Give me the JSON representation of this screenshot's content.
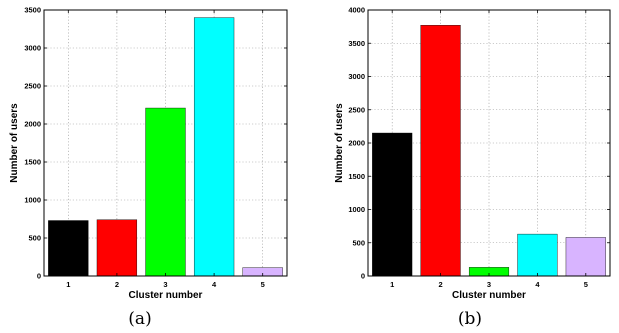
{
  "chart_data": [
    {
      "type": "bar",
      "categories": [
        "1",
        "2",
        "3",
        "4",
        "5"
      ],
      "values": [
        730,
        740,
        2210,
        3400,
        110
      ],
      "colors": [
        "#000000",
        "#ff0000",
        "#00ff00",
        "#00ffff",
        "#d8b4ff"
      ],
      "xlabel": "Cluster number",
      "ylabel": "Number of users",
      "ylim": [
        0,
        3500
      ],
      "yticks": [
        0,
        500,
        1000,
        1500,
        2000,
        2500,
        3000,
        3500
      ],
      "grid": true,
      "caption": "(a)"
    },
    {
      "type": "bar",
      "categories": [
        "1",
        "2",
        "3",
        "4",
        "5"
      ],
      "values": [
        2150,
        3770,
        130,
        630,
        580
      ],
      "colors": [
        "#000000",
        "#ff0000",
        "#00ff00",
        "#00ffff",
        "#d8b4ff"
      ],
      "xlabel": "Cluster number",
      "ylabel": "Number of users",
      "ylim": [
        0,
        4000
      ],
      "yticks": [
        0,
        500,
        1000,
        1500,
        2000,
        2500,
        3000,
        3500,
        4000
      ],
      "grid": true,
      "caption": "(b)"
    }
  ]
}
